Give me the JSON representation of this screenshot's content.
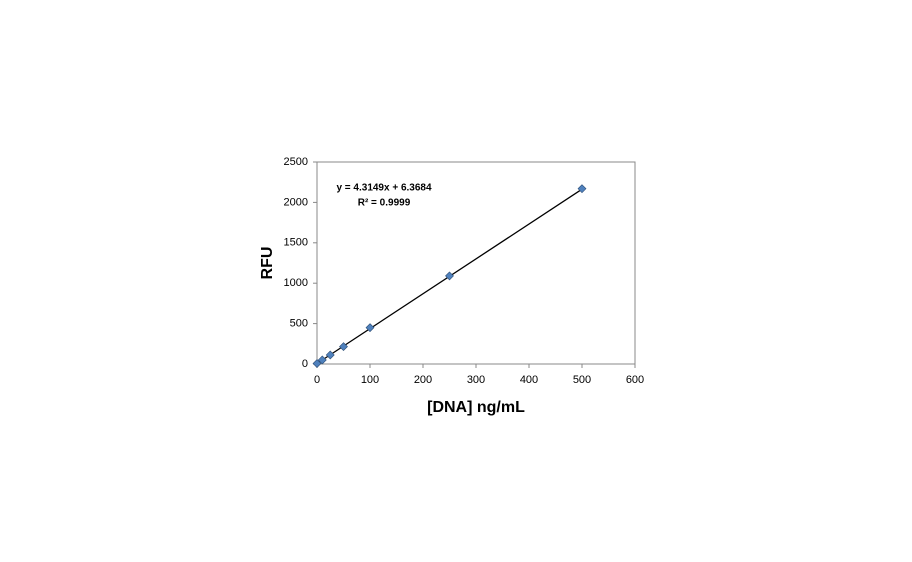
{
  "chart_data": {
    "type": "scatter",
    "x_label": "[DNA] ng/mL",
    "y_label": "RFU",
    "annotations": [
      "y = 4.3149x + 6.3684",
      "R² = 0.9999"
    ],
    "x": [
      0,
      10,
      25,
      50,
      100,
      250,
      500
    ],
    "series": [
      {
        "color": "#4f81bd",
        "values": [
          6,
          50,
          112,
          215,
          450,
          1090,
          2170
        ]
      }
    ],
    "trendline": {
      "slope": 4.3149,
      "intercept": 6.3684,
      "color": "#000000"
    },
    "xlim": [
      0,
      600
    ],
    "xticks": [
      0,
      100,
      200,
      300,
      400,
      500,
      600
    ],
    "ylim": [
      0,
      2500
    ],
    "yticks": [
      0,
      500,
      1000,
      1500,
      2000,
      2500
    ],
    "grid": false
  }
}
